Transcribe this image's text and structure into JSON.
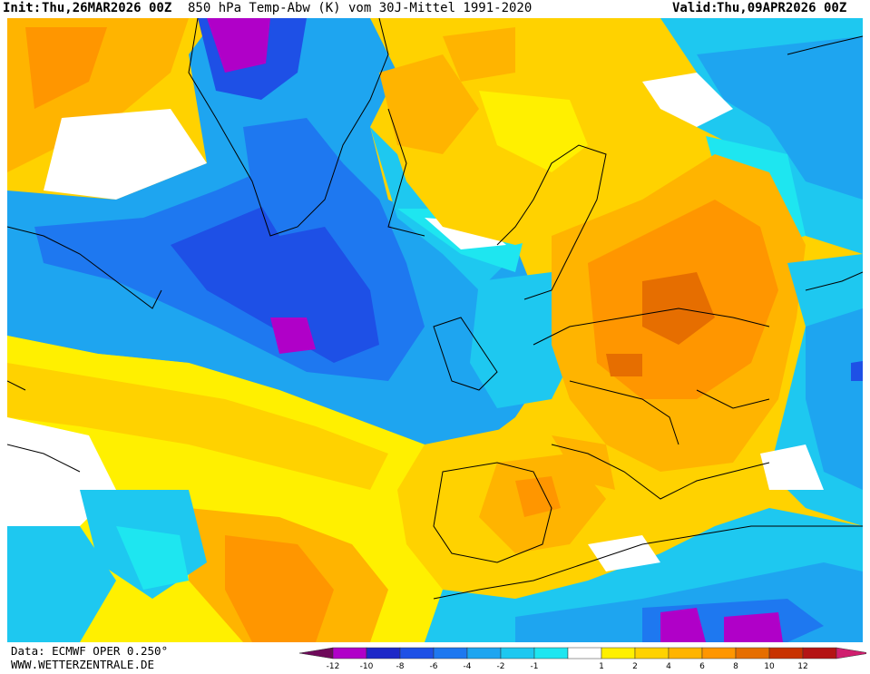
{
  "header": {
    "init_label": "Init:",
    "init_value": "Thu,26MAR2026 00Z",
    "title": "850 hPa Temp-Abw (K) vom 30J-Mittel 1991-2020",
    "valid_label": "Valid:",
    "valid_value": "Thu,09APR2026 00Z"
  },
  "footer": {
    "data_source": "Data: ECMWF OPER 0.250°",
    "website": "WWW.WETTERZENTRALE.DE"
  },
  "legend": {
    "colors": [
      "#6e0a5a",
      "#b000c8",
      "#1e28c8",
      "#1e50e6",
      "#1e78f0",
      "#1ea5f0",
      "#1ec8f0",
      "#1ee6f0",
      "#ffffff",
      "#fff000",
      "#ffd200",
      "#ffb400",
      "#ff9600",
      "#e66e00",
      "#c83200",
      "#b41414",
      "#d01e6e"
    ],
    "tick_labels": [
      "-12",
      "-10",
      "-8",
      "-6",
      "-4",
      "-2",
      "-1",
      "1",
      "2",
      "4",
      "6",
      "8",
      "10",
      "12"
    ]
  },
  "map": {
    "region": "North Atlantic / Europe",
    "field": "850 hPa temperature anomaly (K)"
  }
}
